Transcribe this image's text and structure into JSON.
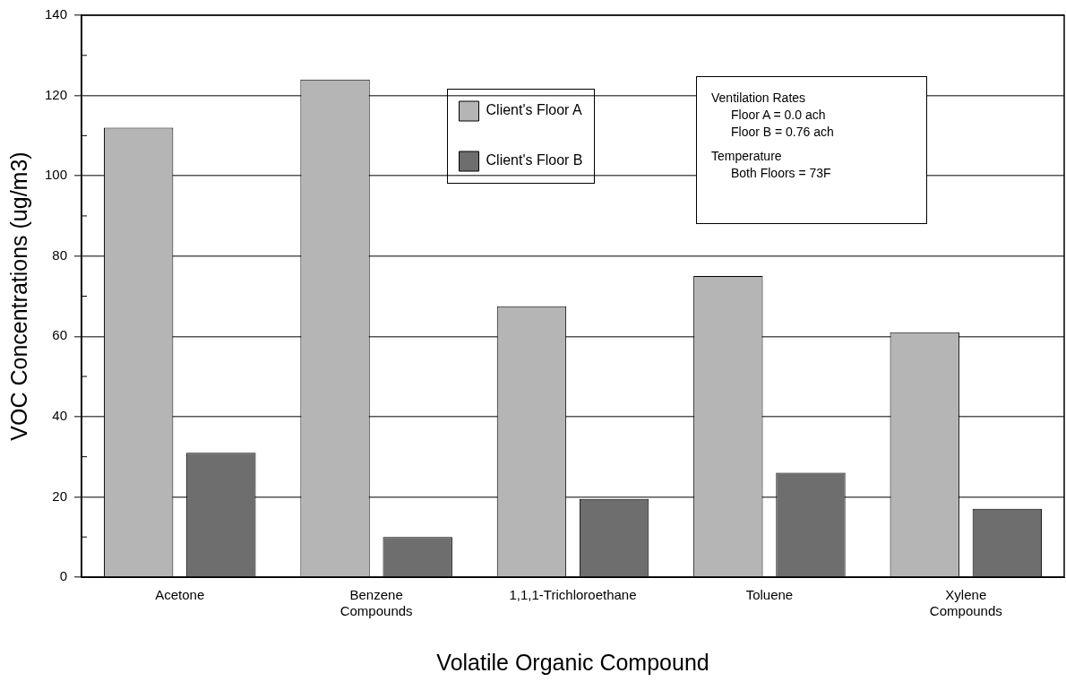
{
  "chart_data": {
    "type": "bar",
    "xlabel": "Volatile Organic Compound",
    "ylabel": "VOC Concentrations (ug/m3)",
    "categories": [
      "Acetone",
      "Benzene Compounds",
      "1,1,1-Trichloroethane",
      "Toluene",
      "Xylene Compounds"
    ],
    "series": [
      {
        "name": "Client's Floor A",
        "color": "#b5b5b5",
        "values": [
          112,
          124,
          67.5,
          75,
          61
        ]
      },
      {
        "name": "Client's Floor B",
        "color": "#6e6e6e",
        "values": [
          31,
          10,
          19.5,
          26,
          17
        ]
      }
    ],
    "ylim": [
      0,
      140
    ],
    "yticks": [
      0,
      20,
      40,
      60,
      80,
      100,
      120,
      140
    ],
    "grid": "y",
    "legend": "top",
    "annotations": [
      "Ventilation Rates\nFloor A = 0.0 ach\nFloor B = 0.76 ach",
      "Temperature\nBoth Floors = 73F"
    ]
  }
}
